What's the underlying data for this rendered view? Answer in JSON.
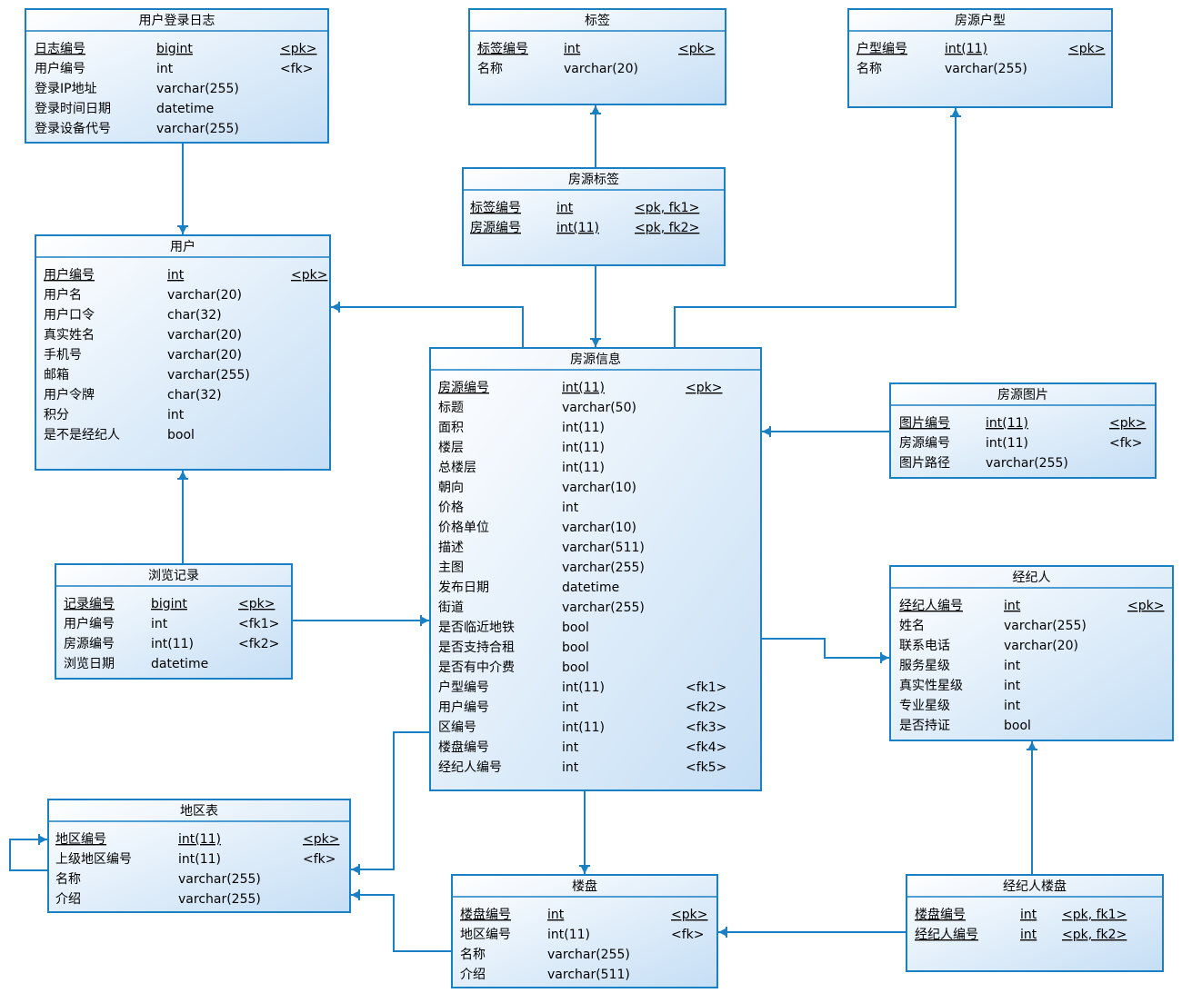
{
  "tables": [
    {
      "title": "用户登录日志",
      "rows": [
        [
          "日志编号",
          "bigint",
          "<pk>"
        ],
        [
          "用户编号",
          "int",
          "<fk>"
        ],
        [
          "登录IP地址",
          "varchar(255)"
        ],
        [
          "登录时间日期",
          "datetime"
        ],
        [
          "登录设备代号",
          "varchar(255)"
        ]
      ]
    },
    {
      "title": "标签",
      "rows": [
        [
          "标签编号",
          "int",
          "<pk>"
        ],
        [
          "名称",
          "varchar(20)"
        ]
      ]
    },
    {
      "title": "房源户型",
      "rows": [
        [
          "户型编号",
          "int(11)",
          "<pk>"
        ],
        [
          "名称",
          "varchar(255)"
        ]
      ]
    },
    {
      "title": "房源标签",
      "rows": [
        [
          "标签编号",
          "int",
          "<pk, fk1>"
        ],
        [
          "房源编号",
          "int(11)",
          "<pk, fk2>"
        ]
      ]
    },
    {
      "title": "用户",
      "rows": [
        [
          "用户编号",
          "int",
          "<pk>"
        ],
        [
          "用户名",
          "varchar(20)"
        ],
        [
          "用户口令",
          "char(32)"
        ],
        [
          "真实姓名",
          "varchar(20)"
        ],
        [
          "手机号",
          "varchar(20)"
        ],
        [
          "邮箱",
          "varchar(255)"
        ],
        [
          "用户令牌",
          "char(32)"
        ],
        [
          "积分",
          "int"
        ],
        [
          "是不是经纪人",
          "bool"
        ]
      ]
    },
    {
      "title": "房源信息",
      "rows": [
        [
          "房源编号",
          "int(11)",
          "<pk>"
        ],
        [
          "标题",
          "varchar(50)"
        ],
        [
          "面积",
          "int(11)"
        ],
        [
          "楼层",
          "int(11)"
        ],
        [
          "总楼层",
          "int(11)"
        ],
        [
          "朝向",
          "varchar(10)"
        ],
        [
          "价格",
          "int"
        ],
        [
          "价格单位",
          "varchar(10)"
        ],
        [
          "描述",
          "varchar(511)"
        ],
        [
          "主图",
          "varchar(255)"
        ],
        [
          "发布日期",
          "datetime"
        ],
        [
          "街道",
          "varchar(255)"
        ],
        [
          "是否临近地铁",
          "bool"
        ],
        [
          "是否支持合租",
          "bool"
        ],
        [
          "是否有中介费",
          "bool"
        ],
        [
          "户型编号",
          "int(11)",
          "<fk1>"
        ],
        [
          "用户编号",
          "int",
          "<fk2>"
        ],
        [
          "区编号",
          "int(11)",
          "<fk3>"
        ],
        [
          "楼盘编号",
          "int",
          "<fk4>"
        ],
        [
          "经纪人编号",
          "int",
          "<fk5>"
        ]
      ]
    },
    {
      "title": "房源图片",
      "rows": [
        [
          "图片编号",
          "int(11)",
          "<pk>"
        ],
        [
          "房源编号",
          "int(11)",
          "<fk>"
        ],
        [
          "图片路径",
          "varchar(255)"
        ]
      ]
    },
    {
      "title": "浏览记录",
      "rows": [
        [
          "记录编号",
          "bigint",
          "<pk>"
        ],
        [
          "用户编号",
          "int",
          "<fk1>"
        ],
        [
          "房源编号",
          "int(11)",
          "<fk2>"
        ],
        [
          "浏览日期",
          "datetime"
        ]
      ]
    },
    {
      "title": "经纪人",
      "rows": [
        [
          "经纪人编号",
          "int",
          "<pk>"
        ],
        [
          "姓名",
          "varchar(255)"
        ],
        [
          "联系电话",
          "varchar(20)"
        ],
        [
          "服务星级",
          "int"
        ],
        [
          "真实性星级",
          "int"
        ],
        [
          "专业星级",
          "int"
        ],
        [
          "是否持证",
          "bool"
        ]
      ]
    },
    {
      "title": "地区表",
      "rows": [
        [
          "地区编号",
          "int(11)",
          "<pk>"
        ],
        [
          "上级地区编号",
          "int(11)",
          "<fk>"
        ],
        [
          "名称",
          "varchar(255)"
        ],
        [
          "介绍",
          "varchar(255)"
        ]
      ]
    },
    {
      "title": "楼盘",
      "rows": [
        [
          "楼盘编号",
          "int",
          "<pk>"
        ],
        [
          "地区编号",
          "int(11)",
          "<fk>"
        ],
        [
          "名称",
          "varchar(255)"
        ],
        [
          "介绍",
          "varchar(511)"
        ]
      ]
    },
    {
      "title": "经纪人楼盘",
      "rows": [
        [
          "楼盘编号",
          "int",
          "<pk, fk1>"
        ],
        [
          "经纪人编号",
          "int",
          "<pk, fk2>"
        ]
      ]
    }
  ]
}
